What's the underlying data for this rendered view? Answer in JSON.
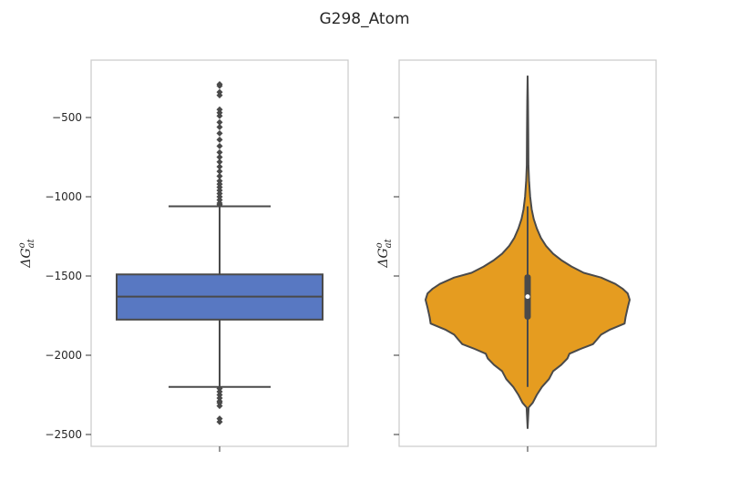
{
  "chart_data": {
    "title": "G298_Atom",
    "ylim": [
      -2570,
      -2130
    ],
    "ylim_note": "",
    "yticks": [
      -500,
      -1000,
      -1500,
      -2000,
      -2500
    ],
    "ytick_labels": [
      "−500",
      "−1000",
      "−1500",
      "−2000",
      "−2500"
    ],
    "ylabel": {
      "main": "ΔG",
      "sup": "o",
      "sub": "at"
    },
    "panels": [
      {
        "type": "box",
        "color": "#5878c2",
        "q1": -1775,
        "median": -1630,
        "q3": -1490,
        "whisker_low": -2200,
        "whisker_high": -1060,
        "outliers_high": [
          -290,
          -300,
          -340,
          -360,
          -450,
          -470,
          -490,
          -530,
          -560,
          -600,
          -640,
          -680,
          -720,
          -750,
          -780,
          -810,
          -840,
          -870,
          -900,
          -920,
          -940,
          -960,
          -980,
          -1000,
          -1020,
          -1040,
          -1050
        ],
        "outliers_low": [
          -2210,
          -2230,
          -2250,
          -2270,
          -2290,
          -2300,
          -2320,
          -2400,
          -2420
        ]
      },
      {
        "type": "violin",
        "color": "#e59c20",
        "min": -2460,
        "max": -240,
        "q1": -1775,
        "median": -1630,
        "q3": -1490,
        "whisker_low": -2200,
        "whisker_high": -1060,
        "density": [
          [
            -2460,
            0.0
          ],
          [
            -2330,
            0.01
          ],
          [
            -2300,
            0.05
          ],
          [
            -2250,
            0.09
          ],
          [
            -2200,
            0.14
          ],
          [
            -2150,
            0.21
          ],
          [
            -2100,
            0.25
          ],
          [
            -2060,
            0.33
          ],
          [
            -2020,
            0.39
          ],
          [
            -1990,
            0.41
          ],
          [
            -1960,
            0.52
          ],
          [
            -1930,
            0.64
          ],
          [
            -1900,
            0.68
          ],
          [
            -1870,
            0.72
          ],
          [
            -1840,
            0.8
          ],
          [
            -1800,
            0.95
          ],
          [
            -1760,
            0.96
          ],
          [
            -1700,
            0.98
          ],
          [
            -1650,
            1.0
          ],
          [
            -1610,
            0.98
          ],
          [
            -1580,
            0.93
          ],
          [
            -1550,
            0.86
          ],
          [
            -1510,
            0.72
          ],
          [
            -1480,
            0.55
          ],
          [
            -1440,
            0.43
          ],
          [
            -1400,
            0.33
          ],
          [
            -1360,
            0.25
          ],
          [
            -1310,
            0.18
          ],
          [
            -1260,
            0.13
          ],
          [
            -1200,
            0.09
          ],
          [
            -1140,
            0.06
          ],
          [
            -1080,
            0.04
          ],
          [
            -1000,
            0.025
          ],
          [
            -900,
            0.014
          ],
          [
            -800,
            0.008
          ],
          [
            -600,
            0.006
          ],
          [
            -400,
            0.004
          ],
          [
            -240,
            0.0
          ]
        ]
      }
    ]
  },
  "colors": {
    "axes_edge": "#cccccc",
    "line": "#4a4a4a",
    "text": "#262626"
  }
}
